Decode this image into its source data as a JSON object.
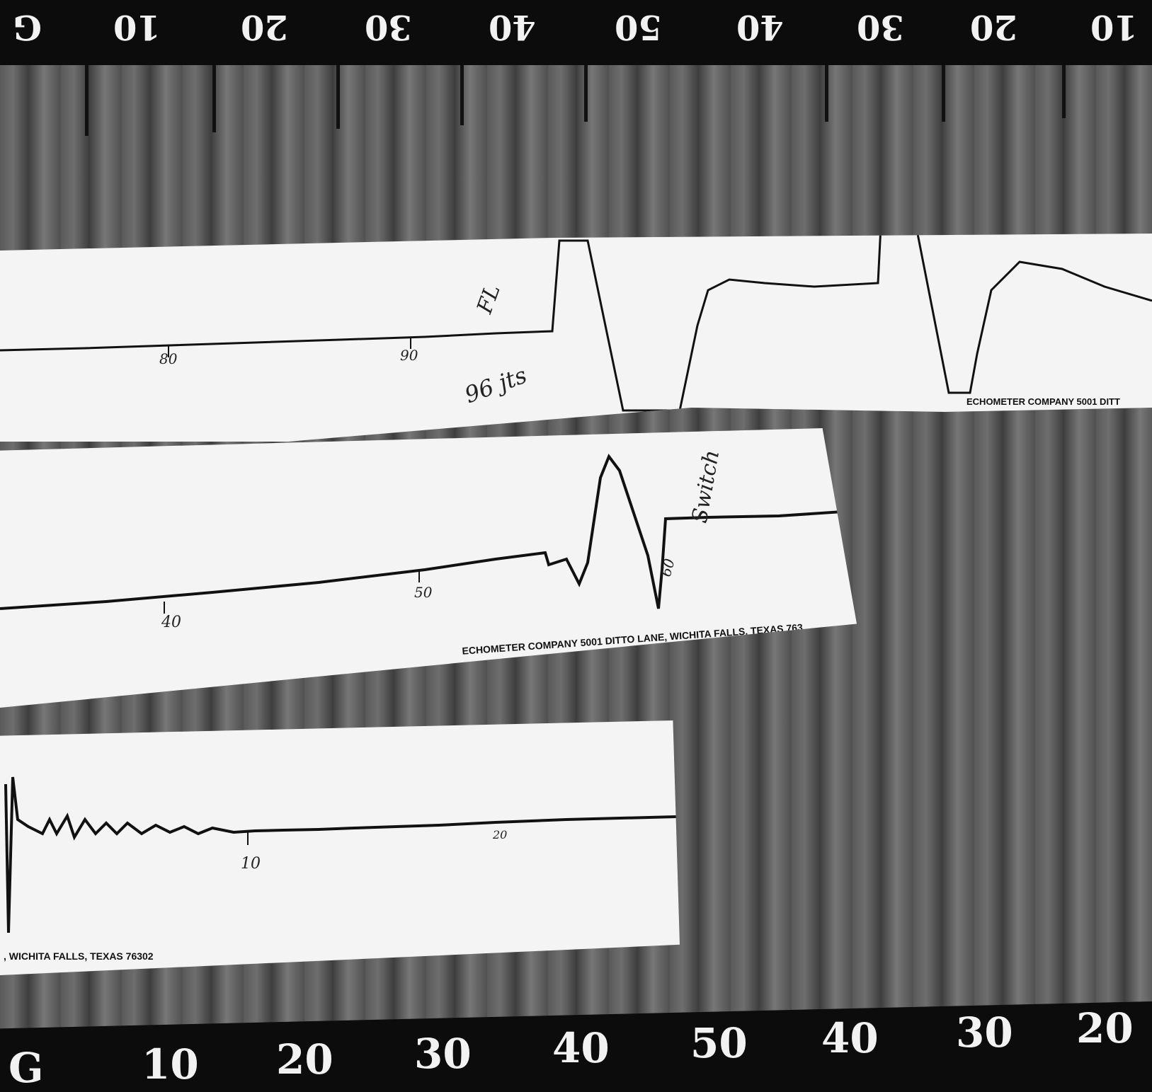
{
  "ruler_top": {
    "labels": [
      "G",
      "10",
      "20",
      "30",
      "40",
      "50",
      "40",
      "30",
      "20",
      "10"
    ]
  },
  "ruler_bottom": {
    "labels": [
      "G",
      "10",
      "20",
      "30",
      "40",
      "50",
      "40",
      "30",
      "20"
    ]
  },
  "strip_top": {
    "marks": [
      "80",
      "90"
    ],
    "handwriting": [
      "FL",
      "96 jts"
    ],
    "imprint": "ECHOMETER COMPANY  5001 DITT"
  },
  "strip_middle": {
    "marks": [
      "40",
      "50",
      "60"
    ],
    "handwriting": [
      "Switch"
    ],
    "imprint": "ECHOMETER COMPANY  5001 DITTO LANE, WICHITA FALLS, TEXAS 763"
  },
  "strip_bottom": {
    "marks": [
      "10",
      "20"
    ],
    "imprint": ", WICHITA FALLS, TEXAS 76302"
  },
  "colors": {
    "paper": "#f4f4f4",
    "ink": "#111111",
    "ruler": "#0c0c0c",
    "ruler_text": "#f2f2f2"
  }
}
